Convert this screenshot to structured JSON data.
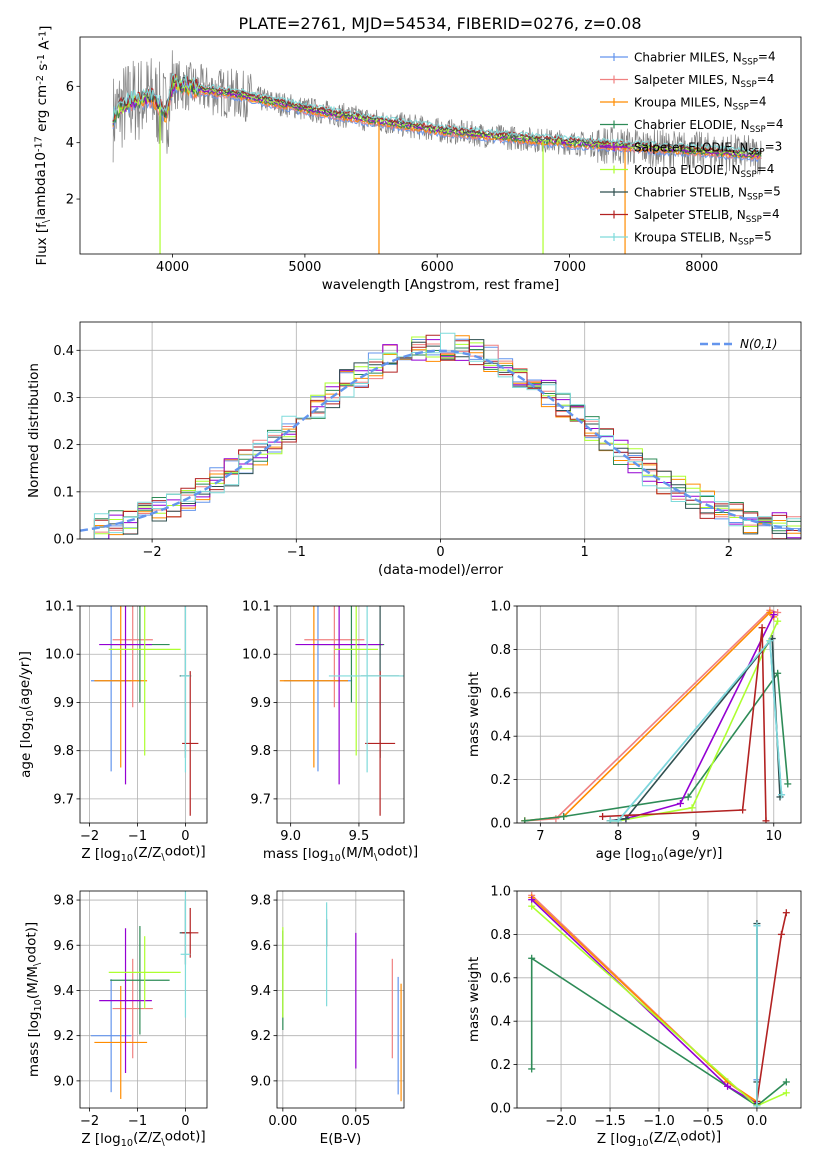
{
  "figure": {
    "title": "PLATE=2761, MJD=54534, FIBERID=0276, z=0.08"
  },
  "colors": {
    "data": "#808080",
    "series": [
      "#6495ed",
      "#f08080",
      "#ff8c00",
      "#2e8b57",
      "#9400d3",
      "#adff2f",
      "#2f4f4f",
      "#b22222",
      "#7fdbdb"
    ]
  },
  "models": [
    {
      "label": "Chabrier MILES, N$_{SSP}$=4",
      "color": "#6495ed",
      "age": 9.945,
      "age_err": 0.188,
      "Z": -1.55,
      "Z_err": 0.42,
      "mass": 9.2,
      "mass_err": 0.25,
      "ebv": 0.079,
      "ebv_mass_err": 0.26
    },
    {
      "label": "Salpeter MILES, N$_{SSP}$=4",
      "color": "#f08080",
      "age": 10.03,
      "age_err": 0.14,
      "Z": -1.1,
      "Z_err": 0.42,
      "mass": 9.32,
      "mass_err": 0.22,
      "ebv": 0.075,
      "ebv_mass_err": 0.22
    },
    {
      "label": "Kroupa MILES, N$_{SSP}$=4",
      "color": "#ff8c00",
      "age": 9.945,
      "age_err": 0.18,
      "Z": -1.35,
      "Z_err": 0.55,
      "mass": 9.17,
      "mass_err": 0.25,
      "ebv": 0.081,
      "ebv_mass_err": 0.26
    },
    {
      "label": "Chabrier ELODIE, N$_{SSP}$=4",
      "color": "#2e8b57",
      "age": 10.02,
      "age_err": 0.12,
      "Z": -0.95,
      "Z_err": 0.62,
      "mass": 9.445,
      "mass_err": 0.24,
      "ebv": 0.0,
      "ebv_mass_err": 0.22
    },
    {
      "label": "Salpeter ELODIE, N$_{SSP}$=3",
      "color": "#9400d3",
      "age": 10.02,
      "age_err": 0.29,
      "Z": -1.25,
      "Z_err": 0.55,
      "mass": 9.355,
      "mass_err": 0.32,
      "ebv": 0.05,
      "ebv_mass_err": 0.3
    },
    {
      "label": "Kroupa ELODIE, N$_{SSP}$=4",
      "color": "#adff2f",
      "age": 10.01,
      "age_err": 0.22,
      "Z": -0.85,
      "Z_err": 0.75,
      "mass": 9.48,
      "mass_err": 0.16,
      "ebv": 0.0,
      "ebv_mass_err": 0.2
    },
    {
      "label": "Chabrier STELIB, N$_{SSP}$=5",
      "color": "#2f4f4f",
      "age": 9.955,
      "age_err": 0.17,
      "Z": 0.0,
      "Z_err": 0.12,
      "mass": 9.655,
      "mass_err": 0.14,
      "ebv": 0.03,
      "ebv_mass_err": 0.06
    },
    {
      "label": "Salpeter STELIB, N$_{SSP}$=4",
      "color": "#b22222",
      "age": 9.815,
      "age_err": 0.15,
      "Z": 0.1,
      "Z_err": 0.17,
      "mass": 9.655,
      "mass_err": 0.11,
      "ebv": 0.0,
      "ebv_mass_err": 0.0
    },
    {
      "label": "Kroupa STELIB, N$_{SSP}$=5",
      "color": "#7fdbdb",
      "age": 9.955,
      "age_err": 0.2,
      "Z": 0.0,
      "Z_err": 0.1,
      "mass": 9.56,
      "mass_err": 0.28,
      "ebv": 0.03,
      "ebv_mass_err": 0.23
    }
  ],
  "chart_data": [
    {
      "type": "line",
      "panel": "spectrum",
      "title": "PLATE=2761, MJD=54534, FIBERID=0276, z=0.08",
      "xlabel": "wavelength [Angstrom, rest frame]",
      "ylabel": "Flux [f$_\\lambda$10$^{-17}$ erg cm$^{-2}$ s$^{-1}$ A$^{-1}$]",
      "xlim": [
        3300,
        8750
      ],
      "ylim": [
        0.05,
        7.75
      ],
      "xticks": [
        4000,
        5000,
        6000,
        7000,
        8000
      ],
      "yticks": [
        2,
        4,
        6
      ],
      "legend": "upper right",
      "continuum_x": [
        3550,
        3600,
        3700,
        3850,
        3950,
        4000,
        4200,
        4500,
        4800,
        5000,
        5500,
        6000,
        6500,
        7000,
        7500,
        8000,
        8450
      ],
      "continuum_y": [
        4.9,
        5.2,
        5.5,
        5.6,
        5.0,
        6.1,
        5.9,
        5.7,
        5.4,
        5.2,
        4.8,
        4.45,
        4.2,
        4.0,
        3.85,
        3.7,
        3.55
      ],
      "spikes": [
        {
          "x": 3905,
          "y": 0.05,
          "color": "#adff2f"
        },
        {
          "x": 5560,
          "y": 0.05,
          "color": "#ff8c00"
        },
        {
          "x": 6800,
          "y": 0.05,
          "color": "#adff2f"
        },
        {
          "x": 7420,
          "y": 0.05,
          "color": "#ff8c00"
        }
      ]
    },
    {
      "type": "line",
      "panel": "residual histogram",
      "xlabel": "(data-model)/error",
      "ylabel": "Normed distribution",
      "xlim": [
        -2.5,
        2.5
      ],
      "ylim": [
        0.0,
        0.46
      ],
      "xticks": [
        -2,
        -1,
        0,
        1,
        2
      ],
      "yticks": [
        0.0,
        0.1,
        0.2,
        0.3,
        0.4
      ],
      "grid": true,
      "legend": "upper right",
      "gaussian_label": "$\\mathcal{N}(0,1)$",
      "gaussian_color": "#6495ed",
      "bins": 50
    },
    {
      "type": "scatter",
      "panel": "age vs Z",
      "xlabel": "Z [log$_{10}$(Z/Z$_\\odot$)]",
      "ylabel": "age [log$_{10}$(age/yr)]",
      "xlim": [
        -2.2,
        0.45
      ],
      "ylim": [
        9.65,
        10.1
      ],
      "xticks": [
        -2,
        -1,
        0
      ],
      "yticks": [
        9.7,
        9.8,
        9.9,
        10.0,
        10.1
      ],
      "grid": true
    },
    {
      "type": "scatter",
      "panel": "age vs mass",
      "xlabel": "mass [log$_{10}$(M/M$_\\odot$)]",
      "xlim": [
        8.9,
        9.83
      ],
      "ylim": [
        9.65,
        10.1
      ],
      "xticks": [
        9.0,
        9.5
      ],
      "yticks": [
        9.7,
        9.8,
        9.9,
        10.0,
        10.1
      ],
      "grid": true
    },
    {
      "type": "line",
      "panel": "mass weight vs age",
      "xlabel": "age [log$_{10}$(age/yr)]",
      "ylabel": "mass weight",
      "xlim": [
        6.7,
        10.35
      ],
      "ylim": [
        0.0,
        1.0
      ],
      "xticks": [
        7,
        8,
        9,
        10
      ],
      "yticks": [
        0.0,
        0.2,
        0.4,
        0.6,
        0.8,
        1.0
      ],
      "grid": true,
      "series": [
        {
          "color": "#6495ed",
          "x": [
            7.9,
            8.0,
            9.95,
            10.1
          ],
          "y": [
            0.01,
            0.01,
            0.84,
            0.13
          ]
        },
        {
          "color": "#f08080",
          "x": [
            6.8,
            7.2,
            9.95,
            10.05
          ],
          "y": [
            0.01,
            0.02,
            0.98,
            0.97
          ]
        },
        {
          "color": "#ff8c00",
          "x": [
            6.8,
            7.3,
            9.95,
            10.0
          ],
          "y": [
            0.01,
            0.03,
            0.97,
            0.95
          ]
        },
        {
          "color": "#2e8b57",
          "x": [
            6.8,
            7.3,
            8.9,
            10.05,
            10.18
          ],
          "y": [
            0.01,
            0.03,
            0.12,
            0.69,
            0.18
          ]
        },
        {
          "color": "#9400d3",
          "x": [
            7.9,
            8.1,
            8.8,
            10.0
          ],
          "y": [
            0.01,
            0.02,
            0.09,
            0.96
          ]
        },
        {
          "color": "#adff2f",
          "x": [
            7.9,
            8.0,
            8.95,
            10.05
          ],
          "y": [
            0.01,
            0.01,
            0.07,
            0.93
          ]
        },
        {
          "color": "#2f4f4f",
          "x": [
            7.9,
            8.1,
            9.98,
            10.08
          ],
          "y": [
            0.01,
            0.02,
            0.85,
            0.12
          ]
        },
        {
          "color": "#b22222",
          "x": [
            7.8,
            9.6,
            9.85,
            9.9
          ],
          "y": [
            0.03,
            0.06,
            0.9,
            0.01
          ]
        },
        {
          "color": "#7fdbdb",
          "x": [
            7.9,
            8.0,
            9.95,
            10.1
          ],
          "y": [
            0.01,
            0.01,
            0.84,
            0.13
          ]
        }
      ]
    },
    {
      "type": "scatter",
      "panel": "mass vs Z",
      "xlabel": "Z [log$_{10}$(Z/Z$_\\odot$)]",
      "ylabel": "mass [log$_{10}$(M/M$_\\odot$)]",
      "xlim": [
        -2.2,
        0.45
      ],
      "ylim": [
        8.88,
        9.84
      ],
      "xticks": [
        -2,
        -1,
        0
      ],
      "yticks": [
        9.0,
        9.2,
        9.4,
        9.6,
        9.8
      ],
      "grid": true
    },
    {
      "type": "scatter",
      "panel": "mass vs E(B-V)",
      "xlabel": "E(B-V)",
      "xlim": [
        -0.004,
        0.083
      ],
      "ylim": [
        8.88,
        9.84
      ],
      "xticks": [
        0.0,
        0.05
      ],
      "yticks": [
        9.0,
        9.2,
        9.4,
        9.6,
        9.8
      ],
      "grid": true
    },
    {
      "type": "line",
      "panel": "mass weight vs Z",
      "xlabel": "Z [log$_{10}$(Z/Z$_\\odot$)]",
      "ylabel": "mass weight",
      "xlim": [
        -2.45,
        0.45
      ],
      "ylim": [
        0.0,
        1.0
      ],
      "xticks": [
        -2.0,
        -1.5,
        -1.0,
        -0.5,
        0.0
      ],
      "yticks": [
        0.0,
        0.2,
        0.4,
        0.6,
        0.8,
        1.0
      ],
      "grid": true,
      "series": [
        {
          "color": "#6495ed",
          "x": [
            0.0,
            0.0,
            0.0
          ],
          "y": [
            0.84,
            0.13,
            0.01
          ]
        },
        {
          "color": "#f08080",
          "x": [
            -2.3,
            -0.3,
            0.0
          ],
          "y": [
            0.98,
            0.12,
            0.02
          ]
        },
        {
          "color": "#ff8c00",
          "x": [
            -2.3,
            -0.3,
            0.0
          ],
          "y": [
            0.97,
            0.12,
            0.03
          ]
        },
        {
          "color": "#2e8b57",
          "x": [
            -2.3,
            -2.3,
            0.0,
            0.3
          ],
          "y": [
            0.18,
            0.69,
            0.01,
            0.12
          ]
        },
        {
          "color": "#9400d3",
          "x": [
            -2.3,
            -0.3,
            0.0
          ],
          "y": [
            0.96,
            0.1,
            0.02
          ]
        },
        {
          "color": "#adff2f",
          "x": [
            -2.3,
            0.0,
            0.3
          ],
          "y": [
            0.93,
            0.01,
            0.07
          ]
        },
        {
          "color": "#2f4f4f",
          "x": [
            0.0,
            0.0,
            0.0
          ],
          "y": [
            0.85,
            0.12,
            0.02
          ]
        },
        {
          "color": "#b22222",
          "x": [
            0.0,
            0.25,
            0.3
          ],
          "y": [
            0.03,
            0.8,
            0.9
          ]
        },
        {
          "color": "#7fdbdb",
          "x": [
            0.0,
            0.0
          ],
          "y": [
            0.84,
            0.01
          ]
        }
      ]
    }
  ]
}
